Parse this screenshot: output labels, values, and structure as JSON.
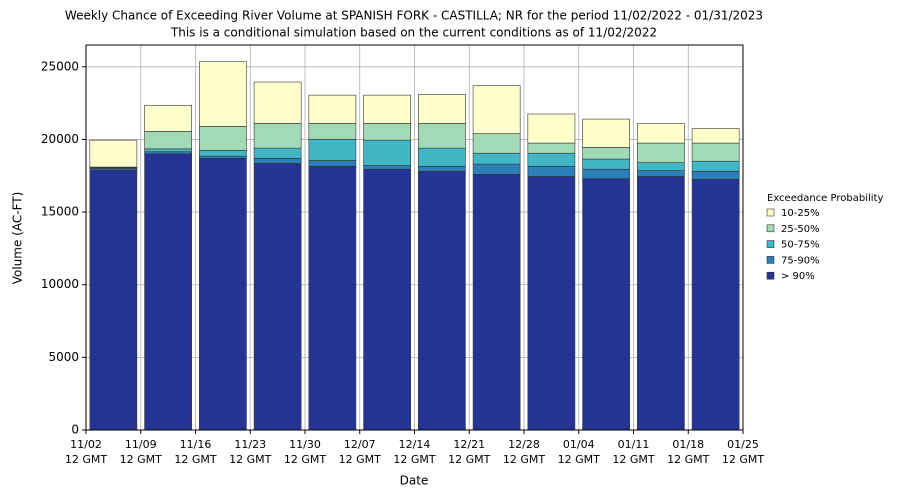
{
  "chart_data": {
    "type": "stacked_bar",
    "title": "Weekly Chance of Exceeding River Volume at SPANISH FORK - CASTILLA; NR for the period 11/02/2022 - 01/31/2023",
    "subtitle": "This is a conditional simulation based on the current conditions as of 11/02/2022",
    "x_label": "Date",
    "y_label": "Volume (AC-FT)",
    "legend_title": "Exceedance Probability",
    "legend": "right",
    "grid": true,
    "ylim": [
      0,
      26500
    ],
    "yticks": [
      0,
      5000,
      10000,
      15000,
      20000,
      25000
    ],
    "xticks": [
      {
        "value": 0,
        "label": [
          "11/02",
          "12 GMT"
        ]
      },
      {
        "value": 1,
        "label": [
          "11/09",
          "12 GMT"
        ]
      },
      {
        "value": 2,
        "label": [
          "11/16",
          "12 GMT"
        ]
      },
      {
        "value": 3,
        "label": [
          "11/23",
          "12 GMT"
        ]
      },
      {
        "value": 4,
        "label": [
          "11/30",
          "12 GMT"
        ]
      },
      {
        "value": 5,
        "label": [
          "12/07",
          "12 GMT"
        ]
      },
      {
        "value": 6,
        "label": [
          "12/14",
          "12 GMT"
        ]
      },
      {
        "value": 7,
        "label": [
          "12/21",
          "12 GMT"
        ]
      },
      {
        "value": 8,
        "label": [
          "12/28",
          "12 GMT"
        ]
      },
      {
        "value": 9,
        "label": [
          "01/04",
          "12 GMT"
        ]
      },
      {
        "value": 10,
        "label": [
          "01/11",
          "12 GMT"
        ]
      },
      {
        "value": 11,
        "label": [
          "01/18",
          "12 GMT"
        ]
      },
      {
        "value": 12,
        "label": [
          "01/25",
          "12 GMT"
        ]
      }
    ],
    "series": [
      {
        "name": "> 90%",
        "color": "#253494",
        "values": [
          17900,
          19000,
          18700,
          18350,
          18150,
          17950,
          17800,
          17600,
          17450,
          17300,
          17450,
          17250
        ]
      },
      {
        "name": "75-90%",
        "color": "#2c7fb8",
        "values": [
          100,
          150,
          150,
          350,
          400,
          250,
          350,
          700,
          700,
          650,
          400,
          550
        ]
      },
      {
        "name": "50-75%",
        "color": "#41b6c4",
        "values": [
          50,
          200,
          400,
          700,
          1450,
          1750,
          1250,
          750,
          900,
          700,
          550,
          700
        ]
      },
      {
        "name": "25-50%",
        "color": "#a1dab4",
        "values": [
          50,
          1200,
          1650,
          1700,
          1100,
          1150,
          1700,
          1350,
          700,
          800,
          1350,
          1250
        ]
      },
      {
        "name": "10-25%",
        "color": "#ffffcc",
        "values": [
          1850,
          1800,
          4450,
          2850,
          1950,
          1950,
          2000,
          3300,
          2000,
          1950,
          1350,
          1000
        ]
      }
    ]
  }
}
